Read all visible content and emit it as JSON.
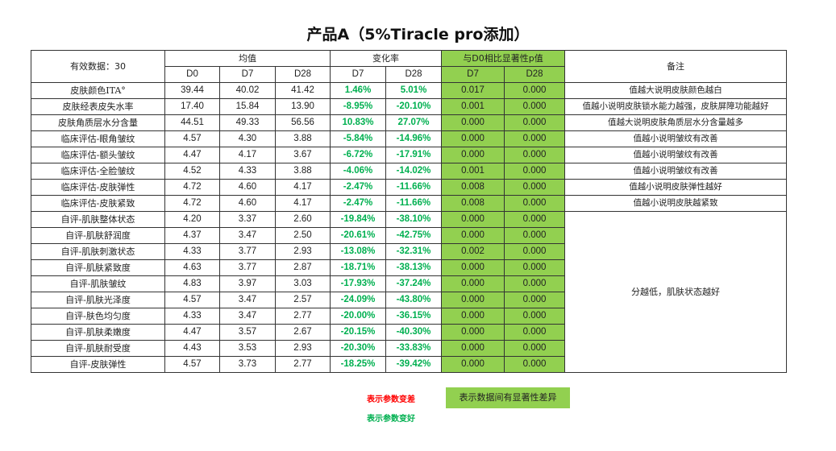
{
  "title": "产品A（5%Tiracle pro添加）",
  "colors": {
    "significant_bg": "#92d050",
    "better_text": "#00b050",
    "worse_text": "#ff0000"
  },
  "header": {
    "valid_data": "有效数据：30",
    "mean": "均值",
    "change_rate": "变化率",
    "p_value": "与D0相比显著性p值",
    "remark": "备注",
    "mean_cols": [
      "D0",
      "D7",
      "D28"
    ],
    "change_cols": [
      "D7",
      "D28"
    ],
    "p_cols": [
      "D7",
      "D28"
    ]
  },
  "rows": [
    {
      "label": "皮肤颜色ITA°",
      "d0": "39.44",
      "d7": "40.02",
      "d28": "41.42",
      "c7": "1.46%",
      "c28": "5.01%",
      "p7": "0.017",
      "p28": "0.000",
      "note": "值越大说明皮肤颜色越白"
    },
    {
      "label": "皮肤经表皮失水率",
      "d0": "17.40",
      "d7": "15.84",
      "d28": "13.90",
      "c7": "-8.95%",
      "c28": "-20.10%",
      "p7": "0.001",
      "p28": "0.000",
      "note": "值越小说明皮肤锁水能力越强，皮肤屏障功能越好"
    },
    {
      "label": "皮肤角质层水分含量",
      "d0": "44.51",
      "d7": "49.33",
      "d28": "56.56",
      "c7": "10.83%",
      "c28": "27.07%",
      "p7": "0.000",
      "p28": "0.000",
      "note": "值越大说明皮肤角质层水分含量越多"
    },
    {
      "label": "临床评估-眼角皱纹",
      "d0": "4.57",
      "d7": "4.30",
      "d28": "3.88",
      "c7": "-5.84%",
      "c28": "-14.96%",
      "p7": "0.000",
      "p28": "0.000",
      "note": "值越小说明皱纹有改善"
    },
    {
      "label": "临床评估-额头皱纹",
      "d0": "4.47",
      "d7": "4.17",
      "d28": "3.67",
      "c7": "-6.72%",
      "c28": "-17.91%",
      "p7": "0.000",
      "p28": "0.000",
      "note": "值越小说明皱纹有改善"
    },
    {
      "label": "临床评估-全脸皱纹",
      "d0": "4.52",
      "d7": "4.33",
      "d28": "3.88",
      "c7": "-4.06%",
      "c28": "-14.02%",
      "p7": "0.001",
      "p28": "0.000",
      "note": "值越小说明皱纹有改善"
    },
    {
      "label": "临床评估-皮肤弹性",
      "d0": "4.72",
      "d7": "4.60",
      "d28": "4.17",
      "c7": "-2.47%",
      "c28": "-11.66%",
      "p7": "0.008",
      "p28": "0.000",
      "note": "值越小说明皮肤弹性越好"
    },
    {
      "label": "临床评估-皮肤紧致",
      "d0": "4.72",
      "d7": "4.60",
      "d28": "4.17",
      "c7": "-2.47%",
      "c28": "-11.66%",
      "p7": "0.008",
      "p28": "0.000",
      "note": "值越小说明皮肤越紧致"
    },
    {
      "label": "自评-肌肤整体状态",
      "d0": "4.20",
      "d7": "3.37",
      "d28": "2.60",
      "c7": "-19.84%",
      "c28": "-38.10%",
      "p7": "0.000",
      "p28": "0.000"
    },
    {
      "label": "自评-肌肤舒润度",
      "d0": "4.37",
      "d7": "3.47",
      "d28": "2.50",
      "c7": "-20.61%",
      "c28": "-42.75%",
      "p7": "0.000",
      "p28": "0.000"
    },
    {
      "label": "自评-肌肤刺激状态",
      "d0": "4.33",
      "d7": "3.77",
      "d28": "2.93",
      "c7": "-13.08%",
      "c28": "-32.31%",
      "p7": "0.002",
      "p28": "0.000"
    },
    {
      "label": "自评-肌肤紧致度",
      "d0": "4.63",
      "d7": "3.77",
      "d28": "2.87",
      "c7": "-18.71%",
      "c28": "-38.13%",
      "p7": "0.000",
      "p28": "0.000"
    },
    {
      "label": "自评-肌肤皱纹",
      "d0": "4.83",
      "d7": "3.97",
      "d28": "3.03",
      "c7": "-17.93%",
      "c28": "-37.24%",
      "p7": "0.000",
      "p28": "0.000"
    },
    {
      "label": "自评-肌肤光泽度",
      "d0": "4.57",
      "d7": "3.47",
      "d28": "2.57",
      "c7": "-24.09%",
      "c28": "-43.80%",
      "p7": "0.000",
      "p28": "0.000"
    },
    {
      "label": "自评-肤色均匀度",
      "d0": "4.33",
      "d7": "3.47",
      "d28": "2.77",
      "c7": "-20.00%",
      "c28": "-36.15%",
      "p7": "0.000",
      "p28": "0.000"
    },
    {
      "label": "自评-肌肤柔嫩度",
      "d0": "4.47",
      "d7": "3.57",
      "d28": "2.67",
      "c7": "-20.15%",
      "c28": "-40.30%",
      "p7": "0.000",
      "p28": "0.000"
    },
    {
      "label": "自评-肌肤耐受度",
      "d0": "4.43",
      "d7": "3.53",
      "d28": "2.93",
      "c7": "-20.30%",
      "c28": "-33.83%",
      "p7": "0.000",
      "p28": "0.000"
    },
    {
      "label": "自评-皮肤弹性",
      "d0": "4.57",
      "d7": "3.73",
      "d28": "2.77",
      "c7": "-18.25%",
      "c28": "-39.42%",
      "p7": "0.000",
      "p28": "0.000"
    }
  ],
  "merged_note": "分越低，肌肤状态越好",
  "legend": {
    "worse": "表示参数变差",
    "better": "表示参数变好",
    "significant": "表示数据间有显著性差异"
  }
}
